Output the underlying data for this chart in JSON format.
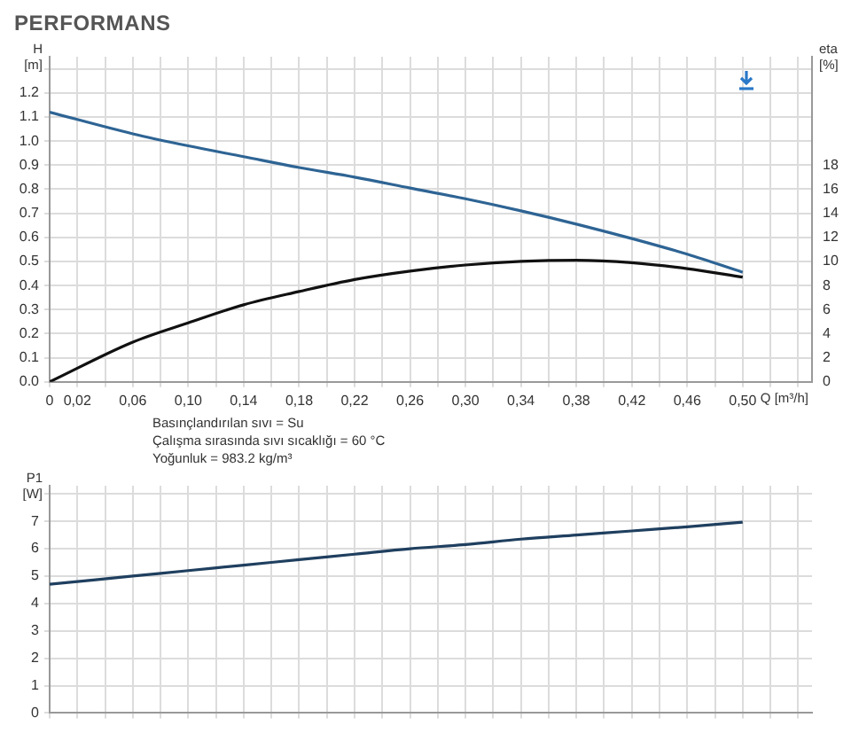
{
  "chart_data": [
    {
      "type": "line",
      "title": "PERFORMANS",
      "xlabel": "Q [m³/h]",
      "ylabel": "H [m]",
      "y2label": "eta [%]",
      "annotations": [
        "Basınçlandırılan sıvı = Su",
        "Çalışma sırasında sıvı sıcaklığı = 60 °C",
        "Yoğunluk = 983.2 kg/m³"
      ],
      "x": [
        0,
        0.06,
        0.1,
        0.14,
        0.18,
        0.22,
        0.26,
        0.3,
        0.34,
        0.38,
        0.42,
        0.46,
        0.5
      ],
      "series": [
        {
          "color": "#2e6494",
          "values": [
            1.12,
            1.03,
            0.98,
            0.935,
            0.89,
            0.85,
            0.805,
            0.76,
            0.71,
            0.655,
            0.595,
            0.53,
            0.455
          ]
        },
        {
          "color": "#111111",
          "axis": "y2",
          "values": [
            0,
            3.3,
            4.9,
            6.4,
            7.5,
            8.5,
            9.2,
            9.7,
            10,
            10.1,
            9.9,
            9.4,
            8.7
          ]
        }
      ],
      "xlim": [
        0,
        0.55
      ],
      "xticks": [
        {
          "value": 0,
          "label": "0"
        },
        {
          "value": 0.02,
          "label": "0,02"
        },
        {
          "value": 0.04,
          "label": null
        },
        {
          "value": 0.06,
          "label": "0,06"
        },
        {
          "value": 0.08,
          "label": null
        },
        {
          "value": 0.1,
          "label": "0,10"
        },
        {
          "value": 0.12,
          "label": null
        },
        {
          "value": 0.14,
          "label": "0,14"
        },
        {
          "value": 0.16,
          "label": null
        },
        {
          "value": 0.18,
          "label": "0,18"
        },
        {
          "value": 0.2,
          "label": null
        },
        {
          "value": 0.22,
          "label": "0,22"
        },
        {
          "value": 0.24,
          "label": null
        },
        {
          "value": 0.26,
          "label": "0,26"
        },
        {
          "value": 0.28,
          "label": null
        },
        {
          "value": 0.3,
          "label": "0,30"
        },
        {
          "value": 0.32,
          "label": null
        },
        {
          "value": 0.34,
          "label": "0,34"
        },
        {
          "value": 0.36,
          "label": null
        },
        {
          "value": 0.38,
          "label": "0,38"
        },
        {
          "value": 0.4,
          "label": null
        },
        {
          "value": 0.42,
          "label": "0,42"
        },
        {
          "value": 0.44,
          "label": null
        },
        {
          "value": 0.46,
          "label": "0,46"
        },
        {
          "value": 0.48,
          "label": null
        },
        {
          "value": 0.5,
          "label": "0,50"
        },
        {
          "value": 0.52,
          "label": null
        },
        {
          "value": 0.54,
          "label": null
        }
      ],
      "ylim": [
        0,
        1.35
      ],
      "yticks": [
        {
          "value": 0,
          "label": "0.0"
        },
        {
          "value": 0.1,
          "label": "0.1"
        },
        {
          "value": 0.2,
          "label": "0.2"
        },
        {
          "value": 0.3,
          "label": "0.3"
        },
        {
          "value": 0.4,
          "label": "0.4"
        },
        {
          "value": 0.5,
          "label": "0.5"
        },
        {
          "value": 0.6,
          "label": "0.6"
        },
        {
          "value": 0.7,
          "label": "0.7"
        },
        {
          "value": 0.8,
          "label": "0.8"
        },
        {
          "value": 0.9,
          "label": "0.9"
        },
        {
          "value": 1,
          "label": "1.0"
        },
        {
          "value": 1.1,
          "label": "1.1"
        },
        {
          "value": 1.2,
          "label": "1.2"
        },
        {
          "value": 1.3,
          "label": null
        }
      ],
      "y2lim": [
        0,
        27
      ],
      "y2ticks": [
        0,
        2,
        4,
        6,
        8,
        10,
        12,
        14,
        16,
        18
      ],
      "grid": true,
      "legend": false,
      "marker": "none",
      "line_style": "solid"
    },
    {
      "type": "line",
      "ylabel": "P1 [W]",
      "x": [
        0,
        0.06,
        0.1,
        0.14,
        0.18,
        0.22,
        0.26,
        0.3,
        0.34,
        0.38,
        0.42,
        0.46,
        0.5
      ],
      "series": [
        {
          "color": "#1f3f5f",
          "values": [
            4.7,
            5.0,
            5.2,
            5.4,
            5.6,
            5.8,
            6.0,
            6.15,
            6.35,
            6.5,
            6.65,
            6.8,
            6.97
          ]
        }
      ],
      "xlim": [
        0,
        0.55
      ],
      "xticks": [
        0,
        0.02,
        0.04,
        0.06,
        0.08,
        0.1,
        0.12,
        0.14,
        0.16,
        0.18,
        0.2,
        0.22,
        0.24,
        0.26,
        0.28,
        0.3,
        0.32,
        0.34,
        0.36,
        0.38,
        0.4,
        0.42,
        0.44,
        0.46,
        0.48,
        0.5,
        0.52,
        0.54
      ],
      "ylim": [
        0,
        8.3
      ],
      "yticks": [
        0,
        1,
        2,
        3,
        4,
        5,
        6,
        7,
        {
          "value": 8,
          "label": null
        }
      ],
      "tick_labels": "y",
      "grid": true,
      "legend": false,
      "marker": "none",
      "line_style": "solid"
    }
  ]
}
